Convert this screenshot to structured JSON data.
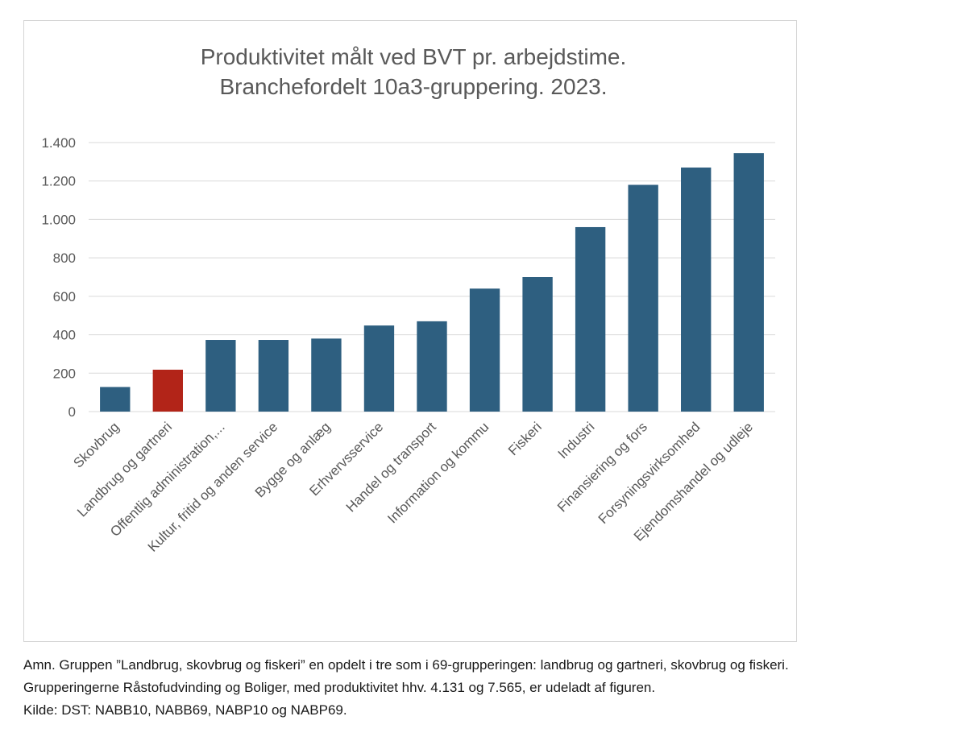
{
  "chart_data": {
    "type": "bar",
    "title": [
      "Produktivitet målt ved BVT pr. arbejdstime.",
      "Branchefordelt 10a3-gruppering. 2023."
    ],
    "categories": [
      "Skovbrug",
      "Landbrug og gartneri",
      "Offentlig administration,...",
      "Kultur, fritid og anden service",
      "Bygge og anlæg",
      "Erhvervsservice",
      "Handel og transport",
      "Information og kommu",
      "Fiskeri",
      "Industri",
      "Finansiering og fors",
      "Forsyningsvirksomhed",
      "Ejendomshandel og udleje"
    ],
    "values": [
      128,
      218,
      373,
      373,
      380,
      448,
      470,
      640,
      700,
      960,
      1180,
      1270,
      1345
    ],
    "bar_colors": [
      "#2e5f80",
      "#b22418",
      "#2e5f80",
      "#2e5f80",
      "#2e5f80",
      "#2e5f80",
      "#2e5f80",
      "#2e5f80",
      "#2e5f80",
      "#2e5f80",
      "#2e5f80",
      "#2e5f80",
      "#2e5f80"
    ],
    "ylim": [
      0,
      1400
    ],
    "yticks": [
      0,
      200,
      400,
      600,
      800,
      1000,
      1200,
      1400
    ],
    "ytick_labels": [
      "0",
      "200",
      "400",
      "600",
      "800",
      "1.000",
      "1.200",
      "1.400"
    ],
    "grid": true,
    "legend": "none",
    "xlabel": "",
    "ylabel": ""
  },
  "notes": [
    "Amn. Gruppen ”Landbrug, skovbrug og fiskeri” en opdelt i tre som i 69-grupperingen: landbrug og gartneri, skovbrug og fiskeri.",
    "Grupperingerne Råstofudvinding og Boliger, med produktivitet hhv. 4.131 og 7.565, er udeladt af figuren.",
    "Kilde: DST:  NABB10, NABB69, NABP10 og NABP69."
  ]
}
